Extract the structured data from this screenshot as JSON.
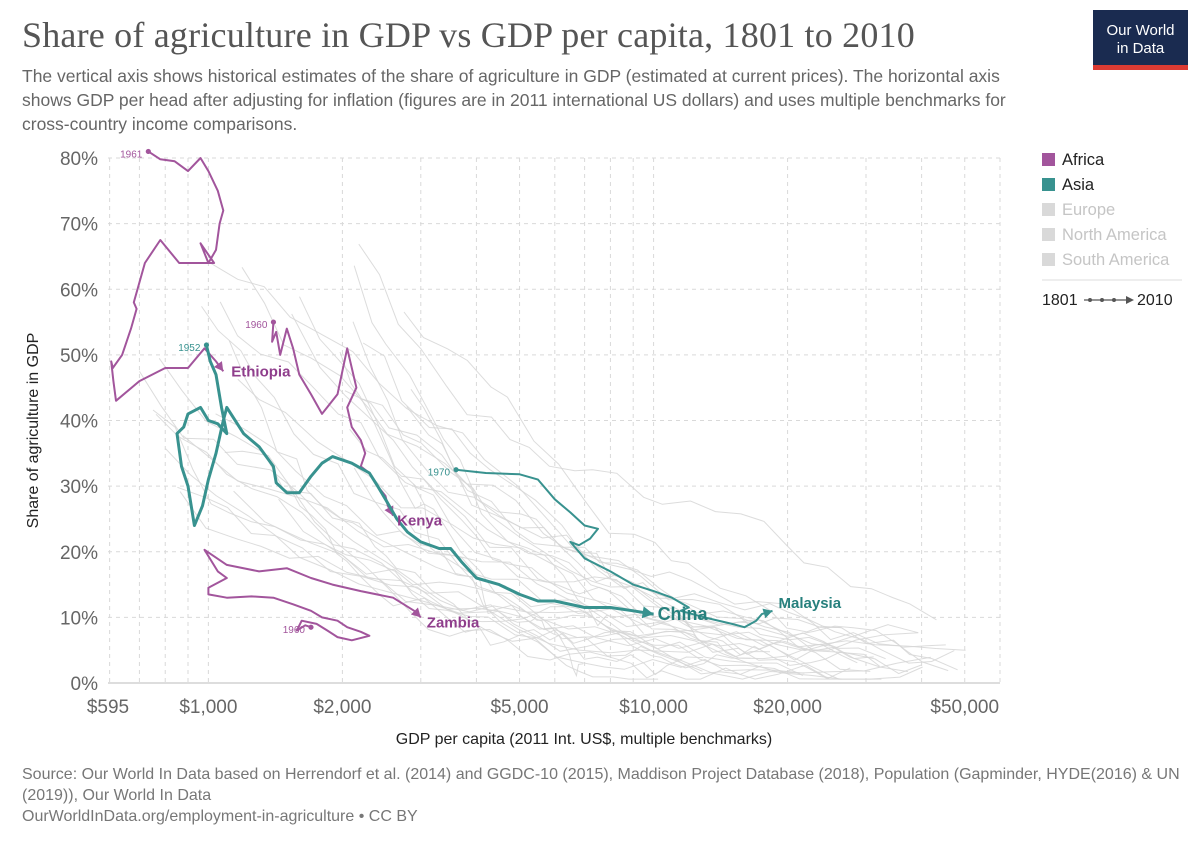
{
  "header": {
    "title": "Share of agriculture in GDP vs GDP per capita, 1801 to 2010",
    "subtitle": "The vertical axis shows historical estimates of the share of agriculture in GDP (estimated at current prices). The horizontal axis shows GDP per head after adjusting for inflation (figures are in 2011 international US dollars) and uses multiple benchmarks for cross-country income comparisons.",
    "logo_line1": "Our World",
    "logo_line2": "in Data"
  },
  "footer": {
    "source": "Source: Our World In Data based on Herrendorf et al. (2014) and GGDC-10 (2015), Maddison Project Database (2018), Population (Gapminder, HYDE(2016) & UN (2019)), Our World In Data",
    "url": "OurWorldInData.org/employment-in-agriculture • CC BY"
  },
  "colors": {
    "africa": "#a2559c",
    "africa_text": "#8f3e8c",
    "asia": "#38928f",
    "asia_text": "#27807d",
    "muted": "#d6d6d6",
    "muted_text": "#c5c5c5",
    "grid": "#d9d9d9"
  },
  "chart_data": {
    "type": "scatter",
    "connected": true,
    "x_scale": "log",
    "xlabel": "GDP per capita (2011 Int. US$, multiple benchmarks)",
    "ylabel": "Share of agriculture in GDP",
    "xlim": [
      595,
      60000
    ],
    "ylim": [
      0,
      80
    ],
    "x_ticks": [
      {
        "value": 595,
        "label": "$595"
      },
      {
        "value": 1000,
        "label": "$1,000"
      },
      {
        "value": 2000,
        "label": "$2,000"
      },
      {
        "value": 5000,
        "label": "$5,000"
      },
      {
        "value": 10000,
        "label": "$10,000"
      },
      {
        "value": 20000,
        "label": "$20,000"
      },
      {
        "value": 50000,
        "label": "$50,000"
      }
    ],
    "y_ticks": [
      {
        "value": 0,
        "label": "0%"
      },
      {
        "value": 10,
        "label": "10%"
      },
      {
        "value": 20,
        "label": "20%"
      },
      {
        "value": 30,
        "label": "30%"
      },
      {
        "value": 40,
        "label": "40%"
      },
      {
        "value": 50,
        "label": "50%"
      },
      {
        "value": 60,
        "label": "60%"
      },
      {
        "value": 70,
        "label": "70%"
      },
      {
        "value": 80,
        "label": "80%"
      }
    ],
    "grid": true,
    "legend": {
      "placement": "right",
      "entries": [
        {
          "name": "Africa",
          "color": "#a2559c",
          "active": true
        },
        {
          "name": "Asia",
          "color": "#38928f",
          "active": true
        },
        {
          "name": "Europe",
          "color": "#d6d6d6",
          "active": false
        },
        {
          "name": "North America",
          "color": "#d6d6d6",
          "active": false
        },
        {
          "name": "South America",
          "color": "#d6d6d6",
          "active": false
        }
      ],
      "time_start": "1801",
      "time_end": "2010"
    },
    "series": [
      {
        "name": "Ethiopia",
        "region": "Africa",
        "start_label": "1961",
        "label_at": "end",
        "points": [
          [
            733,
            81
          ],
          [
            780,
            79.8
          ],
          [
            840,
            79.5
          ],
          [
            900,
            78
          ],
          [
            960,
            80
          ],
          [
            1000,
            78
          ],
          [
            1050,
            75
          ],
          [
            1080,
            72
          ],
          [
            1060,
            70
          ],
          [
            1040,
            66
          ],
          [
            1000,
            64
          ],
          [
            960,
            67
          ],
          [
            1030,
            64
          ],
          [
            940,
            64
          ],
          [
            860,
            64
          ],
          [
            780,
            67.5
          ],
          [
            720,
            64
          ],
          [
            680,
            58
          ],
          [
            690,
            57
          ],
          [
            670,
            54
          ],
          [
            640,
            50
          ],
          [
            610,
            48
          ],
          [
            605,
            49
          ],
          [
            612,
            46
          ],
          [
            620,
            43
          ],
          [
            700,
            46
          ],
          [
            800,
            48
          ],
          [
            900,
            48
          ],
          [
            980,
            51
          ],
          [
            1040,
            49
          ],
          [
            1080,
            47.5
          ]
        ]
      },
      {
        "name": "Kenya",
        "region": "Africa",
        "start_label": "1960",
        "label_at": "end",
        "points": [
          [
            1400,
            55
          ],
          [
            1390,
            52
          ],
          [
            1420,
            53.5
          ],
          [
            1450,
            50
          ],
          [
            1500,
            54
          ],
          [
            1550,
            51
          ],
          [
            1600,
            47
          ],
          [
            1700,
            44
          ],
          [
            1800,
            41
          ],
          [
            1950,
            44
          ],
          [
            2050,
            51
          ],
          [
            2150,
            45
          ],
          [
            2050,
            42
          ],
          [
            2100,
            39
          ],
          [
            2200,
            37
          ],
          [
            2250,
            35
          ],
          [
            2200,
            33
          ],
          [
            2300,
            32
          ],
          [
            2400,
            30
          ],
          [
            2500,
            28.5
          ],
          [
            2530,
            27
          ],
          [
            2600,
            25.5
          ]
        ]
      },
      {
        "name": "Zambia",
        "region": "Africa",
        "start_label": "1960",
        "label_at": "end",
        "points": [
          [
            1700,
            8.5
          ],
          [
            1650,
            8.8
          ],
          [
            1580,
            8
          ],
          [
            1620,
            9.5
          ],
          [
            1750,
            9
          ],
          [
            1850,
            8
          ],
          [
            1950,
            7
          ],
          [
            2100,
            6.5
          ],
          [
            2300,
            7.2
          ],
          [
            2200,
            7.8
          ],
          [
            2050,
            8.5
          ],
          [
            1950,
            9.5
          ],
          [
            1800,
            10
          ],
          [
            1700,
            11
          ],
          [
            1550,
            12
          ],
          [
            1400,
            13
          ],
          [
            1250,
            13.2
          ],
          [
            1100,
            13
          ],
          [
            1000,
            13.5
          ],
          [
            1000,
            14.5
          ],
          [
            1100,
            16
          ],
          [
            1050,
            17
          ],
          [
            980,
            20.3
          ],
          [
            1100,
            18
          ],
          [
            1300,
            17
          ],
          [
            1500,
            17.5
          ],
          [
            1700,
            16
          ],
          [
            1900,
            15
          ],
          [
            2200,
            14
          ],
          [
            2600,
            13
          ],
          [
            2900,
            11
          ],
          [
            3000,
            10
          ]
        ]
      },
      {
        "name": "China",
        "region": "Asia",
        "start_label": "1952",
        "label_at": "end",
        "emphasis": true,
        "points": [
          [
            990,
            51.5
          ],
          [
            1010,
            49
          ],
          [
            1040,
            47
          ],
          [
            1070,
            42
          ],
          [
            1100,
            38
          ],
          [
            1050,
            39.5
          ],
          [
            1000,
            40
          ],
          [
            960,
            42
          ],
          [
            900,
            41
          ],
          [
            880,
            39
          ],
          [
            850,
            38
          ],
          [
            870,
            33
          ],
          [
            900,
            30
          ],
          [
            930,
            24
          ],
          [
            970,
            27
          ],
          [
            1000,
            31
          ],
          [
            1040,
            35
          ],
          [
            1080,
            40
          ],
          [
            1100,
            42
          ],
          [
            1200,
            38
          ],
          [
            1300,
            36
          ],
          [
            1400,
            33
          ],
          [
            1420,
            30.5
          ],
          [
            1500,
            29
          ],
          [
            1600,
            29
          ],
          [
            1700,
            31.5
          ],
          [
            1800,
            33.5
          ],
          [
            1900,
            34.5
          ],
          [
            2100,
            33.5
          ],
          [
            2300,
            32
          ],
          [
            2400,
            30
          ],
          [
            2500,
            28
          ],
          [
            2650,
            25
          ],
          [
            2800,
            23
          ],
          [
            3000,
            21.5
          ],
          [
            3300,
            20.5
          ],
          [
            3500,
            20.5
          ],
          [
            3700,
            18.5
          ],
          [
            4000,
            16
          ],
          [
            4500,
            15
          ],
          [
            5000,
            13.5
          ],
          [
            5500,
            12.5
          ],
          [
            6000,
            12.5
          ],
          [
            7000,
            11.5
          ],
          [
            8000,
            11.5
          ],
          [
            9000,
            11
          ],
          [
            10000,
            10.5
          ]
        ]
      },
      {
        "name": "Malaysia",
        "region": "Asia",
        "start_label": "1970",
        "label_at": "end",
        "points": [
          [
            3600,
            32.5
          ],
          [
            4200,
            32
          ],
          [
            5000,
            31.8
          ],
          [
            5500,
            31
          ],
          [
            6000,
            28
          ],
          [
            6500,
            26
          ],
          [
            7000,
            24
          ],
          [
            7500,
            23.5
          ],
          [
            7200,
            22
          ],
          [
            6800,
            21
          ],
          [
            6500,
            21.5
          ],
          [
            7000,
            19
          ],
          [
            8000,
            17
          ],
          [
            9000,
            15
          ],
          [
            10000,
            14
          ],
          [
            11000,
            13
          ],
          [
            12000,
            11.5
          ],
          [
            11500,
            11
          ],
          [
            13000,
            10
          ],
          [
            15000,
            9
          ],
          [
            16000,
            8.5
          ],
          [
            17000,
            9.5
          ],
          [
            17500,
            10.5
          ],
          [
            18500,
            11
          ]
        ]
      }
    ]
  }
}
